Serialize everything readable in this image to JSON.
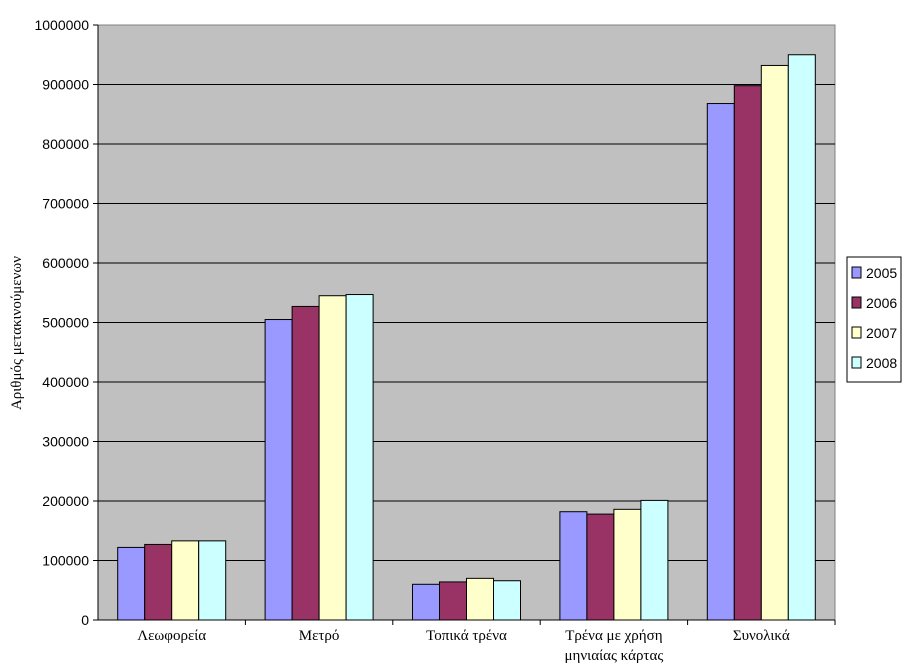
{
  "chart_data": {
    "type": "bar",
    "title": "",
    "xlabel": "",
    "ylabel": "Αριθμός μετακινούμενων",
    "ylim": [
      0,
      1000000
    ],
    "yticks": [
      "0",
      "100000",
      "200000",
      "300000",
      "400000",
      "500000",
      "600000",
      "700000",
      "800000",
      "900000",
      "1000000"
    ],
    "categories": [
      [
        "Λεωφορεία"
      ],
      [
        "Μετρό"
      ],
      [
        "Τοπικά τρένα"
      ],
      [
        "Τρένα με χρήση",
        "μηνιαίας κάρτας"
      ],
      [
        "Συνολικά"
      ]
    ],
    "series": [
      {
        "name": "2005",
        "color": "#9999ff",
        "values": [
          122000,
          505000,
          60000,
          182000,
          868000
        ]
      },
      {
        "name": "2006",
        "color": "#993366",
        "values": [
          127000,
          527000,
          64000,
          178000,
          898000
        ]
      },
      {
        "name": "2007",
        "color": "#ffffcc",
        "values": [
          133000,
          545000,
          70000,
          186000,
          932000
        ]
      },
      {
        "name": "2008",
        "color": "#ccffff",
        "values": [
          133000,
          547000,
          66000,
          201000,
          950000
        ]
      }
    ],
    "grid": true,
    "plot_background": "#c0c0c0",
    "legend_position": "right"
  }
}
